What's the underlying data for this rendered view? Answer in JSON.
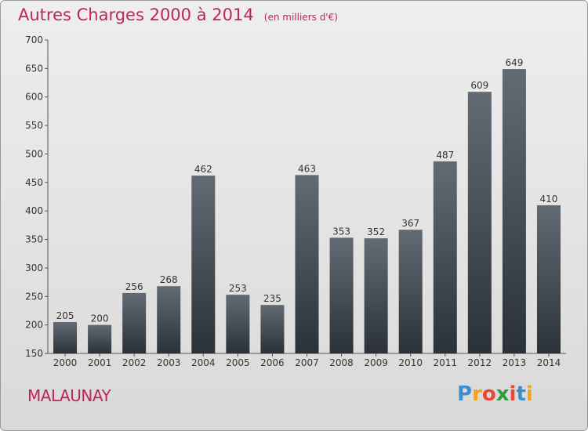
{
  "title": "Autres Charges 2000 à 2014",
  "subtitle": "(en milliers d'€)",
  "town": "MALAUNAY",
  "logo": {
    "text": "Proxiti",
    "letters": [
      "P",
      "r",
      "o",
      "x",
      "i",
      "t",
      "i"
    ],
    "colors": [
      "#3a8fd0",
      "#f2a21b",
      "#e8473c",
      "#2f9b3d",
      "#e8473c",
      "#3a8fd0",
      "#f2a21b"
    ]
  },
  "colors": {
    "accent": "#c0245c",
    "bar_top": "#626b74",
    "bar_bottom": "#2a3138",
    "axis": "#555555"
  },
  "chart_data": {
    "type": "bar",
    "categories": [
      "2000",
      "2001",
      "2002",
      "2003",
      "2004",
      "2005",
      "2006",
      "2007",
      "2008",
      "2009",
      "2010",
      "2011",
      "2012",
      "2013",
      "2014"
    ],
    "values": [
      205,
      200,
      256,
      268,
      462,
      253,
      235,
      463,
      353,
      352,
      367,
      487,
      609,
      649,
      410
    ],
    "title": "Autres Charges 2000 à 2014",
    "subtitle": "(en milliers d'€)",
    "ylim": [
      150,
      700
    ],
    "yticks": [
      150,
      200,
      250,
      300,
      350,
      400,
      450,
      500,
      550,
      600,
      650,
      700
    ],
    "grid": false,
    "legend": "none"
  }
}
